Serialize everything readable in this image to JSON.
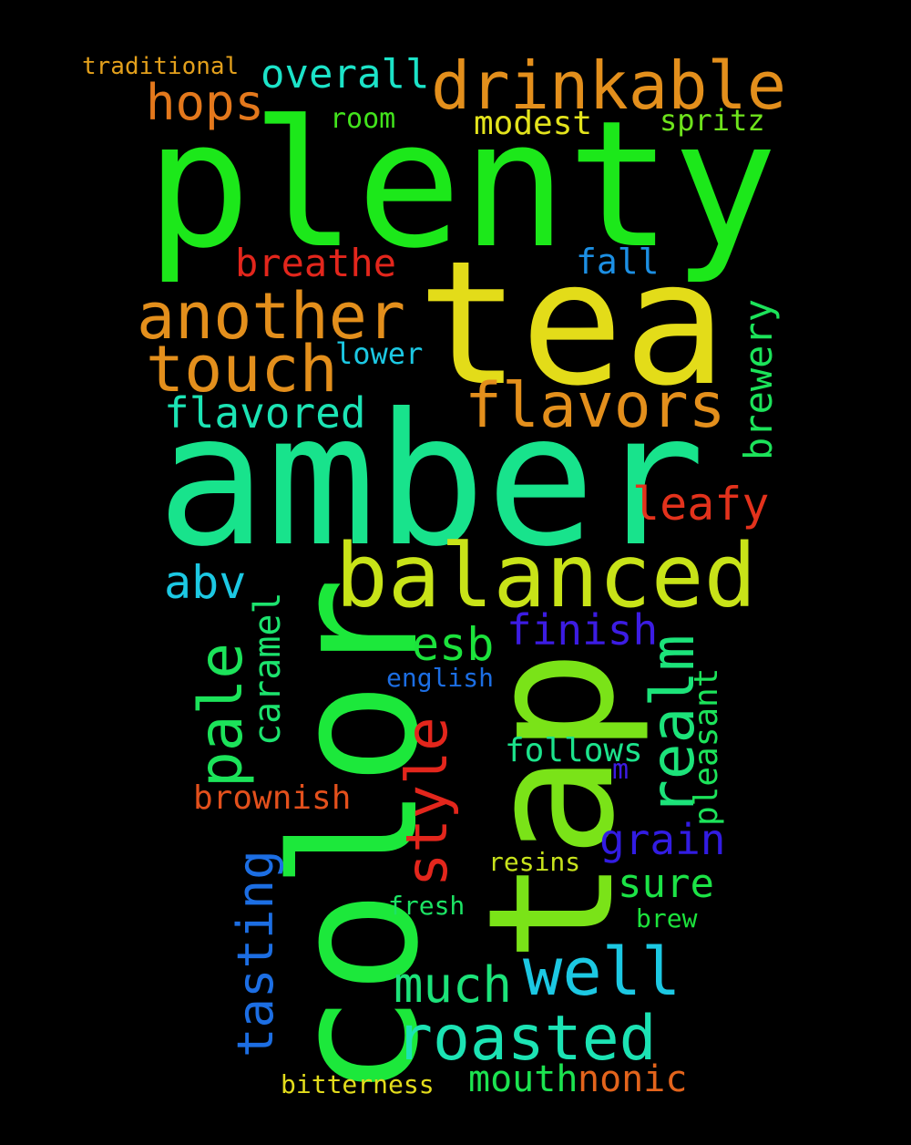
{
  "background": "#000000",
  "words": [
    {
      "text": "plenty",
      "color": "#1ce81a"
    },
    {
      "text": "tea",
      "color": "#e3dc19"
    },
    {
      "text": "amber",
      "color": "#18e38c"
    },
    {
      "text": "color",
      "color": "#1ce83b"
    },
    {
      "text": "tap",
      "color": "#7ae318"
    },
    {
      "text": "balanced",
      "color": "#c8e318"
    },
    {
      "text": "drinkable",
      "color": "#e38f1c"
    },
    {
      "text": "another",
      "color": "#e38f1c"
    },
    {
      "text": "touch",
      "color": "#e38f1c"
    },
    {
      "text": "flavors",
      "color": "#e38f1c"
    },
    {
      "text": "overall",
      "color": "#1ce3c8"
    },
    {
      "text": "hops",
      "color": "#e3781c"
    },
    {
      "text": "traditional",
      "color": "#e3a01c"
    },
    {
      "text": "room",
      "color": "#42e31c"
    },
    {
      "text": "modest",
      "color": "#e3e31c"
    },
    {
      "text": "spritz",
      "color": "#6ee31c"
    },
    {
      "text": "breathe",
      "color": "#e3261c"
    },
    {
      "text": "fall",
      "color": "#1c8fe3"
    },
    {
      "text": "lower",
      "color": "#1cc8e3"
    },
    {
      "text": "flavored",
      "color": "#1ce3b4"
    },
    {
      "text": "brewery",
      "color": "#1ce35a"
    },
    {
      "text": "leafy",
      "color": "#e3321c"
    },
    {
      "text": "abv",
      "color": "#1cc8e3"
    },
    {
      "text": "pale",
      "color": "#1ce35a"
    },
    {
      "text": "caramel",
      "color": "#1ce36e"
    },
    {
      "text": "esb",
      "color": "#1ce33c"
    },
    {
      "text": "finish",
      "color": "#3c1ce3"
    },
    {
      "text": "realm",
      "color": "#1ce37a"
    },
    {
      "text": "english",
      "color": "#1c6ee3"
    },
    {
      "text": "style",
      "color": "#e3261c"
    },
    {
      "text": "pleasant",
      "color": "#1ce35a"
    },
    {
      "text": "follows",
      "color": "#1ce38c"
    },
    {
      "text": "m",
      "color": "#3c1ce3"
    },
    {
      "text": "brownish",
      "color": "#e3501c"
    },
    {
      "text": "grain",
      "color": "#321ce3"
    },
    {
      "text": "tasting",
      "color": "#1c6ee3"
    },
    {
      "text": "resins",
      "color": "#c8e31c"
    },
    {
      "text": "sure",
      "color": "#1ce346"
    },
    {
      "text": "fresh",
      "color": "#1ce364"
    },
    {
      "text": "brew",
      "color": "#1ce33c"
    },
    {
      "text": "well",
      "color": "#1cc8e3"
    },
    {
      "text": "much",
      "color": "#1ce37a"
    },
    {
      "text": "roasted",
      "color": "#1ce3b4"
    },
    {
      "text": "mouth",
      "color": "#1ce350"
    },
    {
      "text": "nonic",
      "color": "#e3641c"
    },
    {
      "text": "bitterness",
      "color": "#e3dc1c"
    }
  ]
}
